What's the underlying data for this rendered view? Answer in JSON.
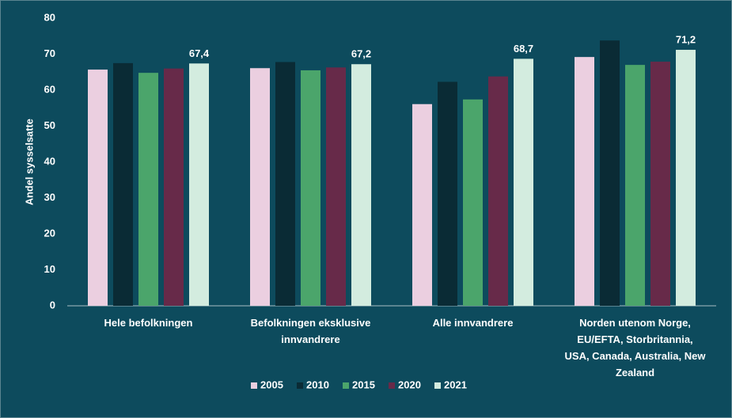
{
  "chart_data": {
    "type": "bar",
    "y_label": "Andel sysselsatte",
    "categories": [
      "Hele befolkningen",
      "Befolkningen eksklusive\ninnvandrere",
      "Alle innvandrere",
      "Norden utenom Norge,\nEU/EFTA,  Storbritannia,\nUSA, Canada, Australia, New\nZealand"
    ],
    "series": [
      {
        "name": "2005",
        "color": "#ebcfe0",
        "values": [
          65.7,
          66.1,
          56.1,
          69.2
        ]
      },
      {
        "name": "2010",
        "color": "#0a2b35",
        "values": [
          67.5,
          67.8,
          62.3,
          73.8
        ]
      },
      {
        "name": "2015",
        "color": "#4ba56b",
        "values": [
          64.8,
          65.5,
          57.4,
          67.0
        ]
      },
      {
        "name": "2020",
        "color": "#672a49",
        "values": [
          66.0,
          66.3,
          63.8,
          67.9
        ]
      },
      {
        "name": "2021",
        "color": "#d3ecdf",
        "values": [
          67.4,
          67.2,
          68.7,
          71.2
        ],
        "value_labels": [
          "67,4",
          "67,2",
          "68,7",
          "71,2"
        ]
      }
    ],
    "ylim": [
      0,
      80
    ],
    "yticks": [
      0,
      10,
      20,
      30,
      40,
      50,
      60,
      70,
      80
    ],
    "grid": false,
    "legend": "bottom"
  }
}
